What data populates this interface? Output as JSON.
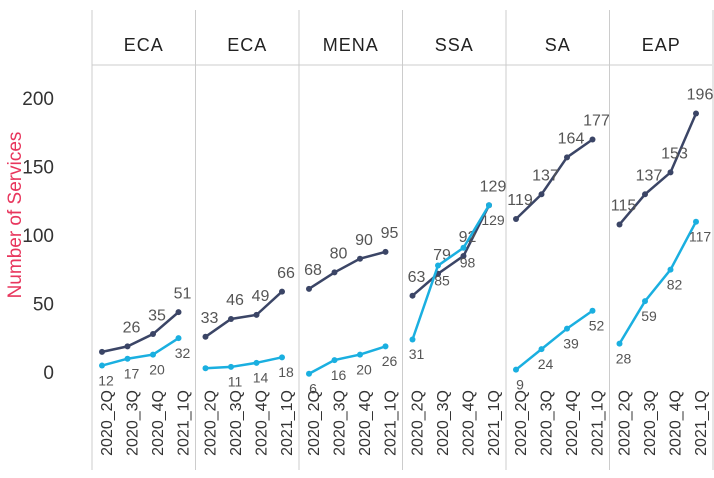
{
  "chart_data": {
    "type": "line",
    "y_label": "Number of Services",
    "categories": [
      "2020_2Q",
      "2020_3Q",
      "2020_4Q",
      "2021_1Q"
    ],
    "ylim": [
      0,
      225
    ],
    "yticks": [
      0,
      50,
      100,
      150,
      200
    ],
    "colors": [
      "#3b4566",
      "#1aafe0"
    ],
    "panels": [
      {
        "title": "ECA",
        "series": [
          {
            "color": "#3b4566",
            "values": [
              22,
              26,
              35,
              51
            ],
            "value_labels": [
              null,
              "26",
              "35",
              "51"
            ]
          },
          {
            "color": "#1aafe0",
            "values": [
              12,
              17,
              20,
              32
            ]
          }
        ]
      },
      {
        "title": "ECA",
        "series": [
          {
            "color": "#3b4566",
            "values": [
              33,
              46,
              49,
              66
            ]
          },
          {
            "color": "#1aafe0",
            "values": [
              10,
              11,
              14,
              18
            ],
            "value_labels": [
              null,
              "11",
              "14",
              "18"
            ]
          }
        ]
      },
      {
        "title": "MENA",
        "series": [
          {
            "color": "#3b4566",
            "values": [
              68,
              80,
              90,
              95
            ]
          },
          {
            "color": "#1aafe0",
            "values": [
              6,
              16,
              20,
              26
            ]
          }
        ]
      },
      {
        "title": "SSA",
        "series": [
          {
            "color": "#3b4566",
            "values": [
              63,
              79,
              92,
              129
            ]
          },
          {
            "color": "#1aafe0",
            "values": [
              31,
              85,
              98,
              129
            ]
          }
        ]
      },
      {
        "title": "SA",
        "series": [
          {
            "color": "#3b4566",
            "values": [
              119,
              137,
              164,
              177
            ]
          },
          {
            "color": "#1aafe0",
            "values": [
              9,
              24,
              39,
              52
            ]
          }
        ]
      },
      {
        "title": "EAP",
        "series": [
          {
            "color": "#3b4566",
            "values": [
              115,
              137,
              153,
              196
            ]
          },
          {
            "color": "#1aafe0",
            "values": [
              28,
              59,
              82,
              117
            ]
          }
        ]
      }
    ]
  }
}
